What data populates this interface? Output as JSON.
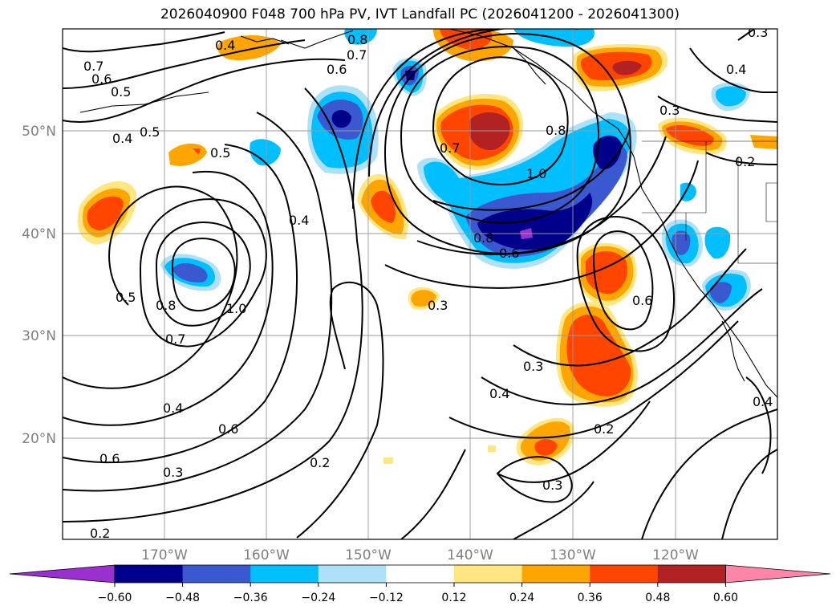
{
  "title": "2026040900 F048 700 hPa PV, IVT Landfall PC (2026041200 - 2026041300)",
  "map": {
    "lon_labels": [
      "170°W",
      "160°W",
      "150°W",
      "140°W",
      "130°W",
      "120°W"
    ],
    "lat_labels": [
      "50°N",
      "40°N",
      "30°N",
      "20°N"
    ]
  },
  "contour_labels": [
    "0.4",
    "0.8",
    "0.7",
    "0.6",
    "0.7",
    "0.6",
    "0.5",
    "0.4",
    "0.5",
    "0.5",
    "0.4",
    "0.7",
    "0.8",
    "1.0",
    "0.8",
    "0.3",
    "0.4",
    "0.2",
    "0.5",
    "0.8",
    "0.7",
    "1.0",
    "0.4",
    "0.6",
    "0.6",
    "0.3",
    "0.6",
    "0.3",
    "0.4",
    "0.2",
    "0.6",
    "0.3",
    "0.2",
    "0.3",
    "0.2",
    "0.4",
    "0.3"
  ],
  "colorbar": {
    "colors": [
      "#9b30d0",
      "#00008b",
      "#3a58cf",
      "#00bfff",
      "#aee1f8",
      "#ffffff",
      "#ffe680",
      "#ffa500",
      "#ff4500",
      "#b22222",
      "#ff85a8"
    ],
    "ticks": [
      "−0.60",
      "−0.48",
      "−0.36",
      "−0.24",
      "−0.12",
      "0.12",
      "0.24",
      "0.36",
      "0.48",
      "0.60"
    ]
  }
}
